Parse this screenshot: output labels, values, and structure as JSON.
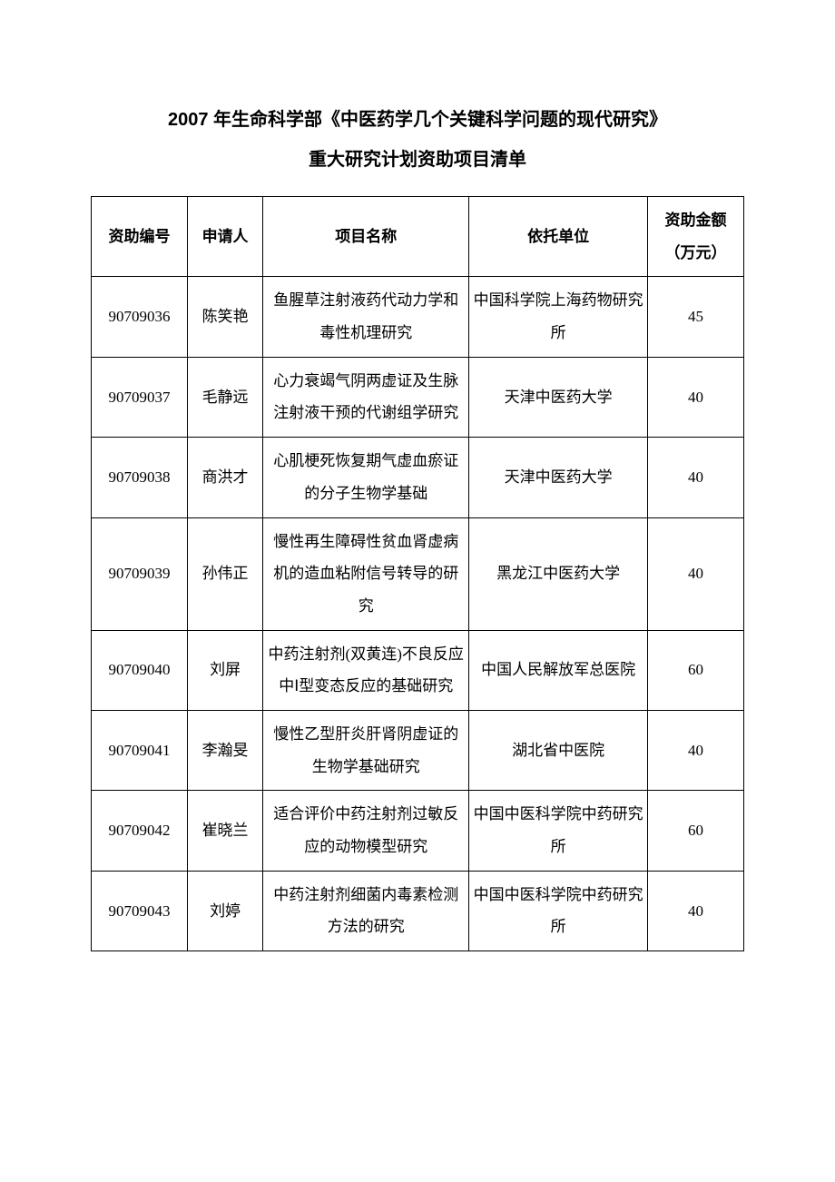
{
  "title": {
    "line1": "2007 年生命科学部《中医药学几个关键科学问题的现代研究》",
    "line2": "重大研究计划资助项目清单"
  },
  "table": {
    "columns": [
      "资助编号",
      "申请人",
      "项目名称",
      "依托单位",
      "资助金额（万元）"
    ],
    "rows": [
      {
        "id": "90709036",
        "applicant": "陈笑艳",
        "project": "鱼腥草注射液药代动力学和毒性机理研究",
        "org": "中国科学院上海药物研究所",
        "amount": "45"
      },
      {
        "id": "90709037",
        "applicant": "毛静远",
        "project": "心力衰竭气阴两虚证及生脉注射液干预的代谢组学研究",
        "org": "天津中医药大学",
        "amount": "40"
      },
      {
        "id": "90709038",
        "applicant": "商洪才",
        "project": "心肌梗死恢复期气虚血瘀证的分子生物学基础",
        "org": "天津中医药大学",
        "amount": "40"
      },
      {
        "id": "90709039",
        "applicant": "孙伟正",
        "project": "慢性再生障碍性贫血肾虚病机的造血粘附信号转导的研究",
        "org": "黑龙江中医药大学",
        "amount": "40"
      },
      {
        "id": "90709040",
        "applicant": "刘屏",
        "project": "中药注射剂(双黄连)不良反应中Ⅰ型变态反应的基础研究",
        "org": "中国人民解放军总医院",
        "amount": "60"
      },
      {
        "id": "90709041",
        "applicant": "李瀚旻",
        "project": "慢性乙型肝炎肝肾阴虚证的生物学基础研究",
        "org": "湖北省中医院",
        "amount": "40"
      },
      {
        "id": "90709042",
        "applicant": "崔晓兰",
        "project": "适合评价中药注射剂过敏反应的动物模型研究",
        "org": "中国中医科学院中药研究所",
        "amount": "60"
      },
      {
        "id": "90709043",
        "applicant": "刘婷",
        "project": "中药注射剂细菌内毒素检测方法的研究",
        "org": "中国中医科学院中药研究所",
        "amount": "40"
      }
    ]
  }
}
